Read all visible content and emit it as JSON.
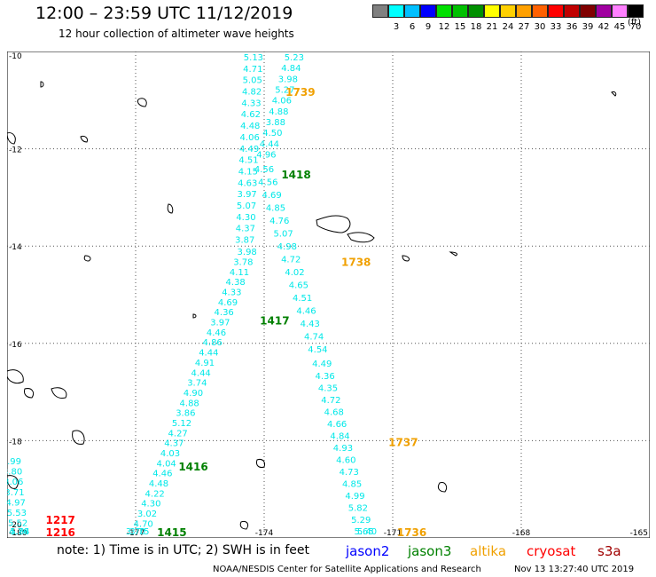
{
  "title": "12:00 – 23:59 UTC 11/12/2019",
  "subtitle": "12 hour collection of altimeter wave heights",
  "colorbar": {
    "unit": "(ft)",
    "boxes": [
      {
        "label": "",
        "color": "#808080"
      },
      {
        "label": "3",
        "color": "#00ffff"
      },
      {
        "label": "6",
        "color": "#00bfff"
      },
      {
        "label": "9",
        "color": "#0000ff"
      },
      {
        "label": "12",
        "color": "#00e000"
      },
      {
        "label": "15",
        "color": "#00c000"
      },
      {
        "label": "18",
        "color": "#009000"
      },
      {
        "label": "21",
        "color": "#ffff00"
      },
      {
        "label": "24",
        "color": "#ffd000"
      },
      {
        "label": "27",
        "color": "#ffa000"
      },
      {
        "label": "30",
        "color": "#ff6000"
      },
      {
        "label": "33",
        "color": "#ff0000"
      },
      {
        "label": "36",
        "color": "#c00000"
      },
      {
        "label": "39",
        "color": "#800000"
      },
      {
        "label": "42",
        "color": "#a000a0"
      },
      {
        "label": "45",
        "color": "#ff80ff"
      },
      {
        "label": "70",
        "color": "#000000"
      }
    ]
  },
  "axes": {
    "lon_ticks": [
      "-180",
      "-177",
      "-174",
      "-171",
      "-168",
      "-165"
    ],
    "lat_ticks": [
      "-10",
      "-12",
      "-14",
      "-16",
      "-18",
      "-20"
    ]
  },
  "track_labels": [
    {
      "text": "1739",
      "color": "#f0a000",
      "lon": -173.5,
      "lat": -10.8
    },
    {
      "text": "1418",
      "color": "#008000",
      "lon": -173.6,
      "lat": -12.5
    },
    {
      "text": "1738",
      "color": "#f0a000",
      "lon": -172.2,
      "lat": -14.3
    },
    {
      "text": "1417",
      "color": "#008000",
      "lon": -174.1,
      "lat": -15.5
    },
    {
      "text": "1737",
      "color": "#f0a000",
      "lon": -171.1,
      "lat": -18.0
    },
    {
      "text": "1416",
      "color": "#008000",
      "lon": -176.0,
      "lat": -18.5
    },
    {
      "text": "1217",
      "color": "#ff0000",
      "lon": -179.1,
      "lat": -19.6
    },
    {
      "text": "1216",
      "color": "#ff0000",
      "lon": -179.1,
      "lat": -20.0
    },
    {
      "text": "1415",
      "color": "#008000",
      "lon": -176.5,
      "lat": -20.0
    },
    {
      "text": "1736",
      "color": "#f0a000",
      "lon": -170.9,
      "lat": -20.0
    }
  ],
  "tracks": [
    {
      "name": "jason3-1418",
      "color": "#00e8e8",
      "start": [
        -174.25,
        -10.0
      ],
      "end": [
        -174.45,
        -13.75
      ],
      "values": [
        "5.13",
        "4.71",
        "5.05",
        "4.82",
        "4.33",
        "4.62",
        "4.48",
        "4.06",
        "4.49",
        "4.51",
        "4.15",
        "4.63",
        "3.97",
        "5.07",
        "4.30",
        "4.37",
        "3.87"
      ]
    },
    {
      "name": "altika-1739",
      "color": "#00e8e8",
      "start": [
        -173.3,
        -10.0
      ],
      "end": [
        -173.95,
        -12.0
      ],
      "values": [
        "5.23",
        "4.84",
        "3.98",
        "5.27",
        "4.06",
        "4.88",
        "3.88",
        "4.50",
        "4.44",
        "4.96"
      ]
    },
    {
      "name": "altika-1738",
      "color": "#00e8e8",
      "start": [
        -174.0,
        -12.3
      ],
      "end": [
        -172.75,
        -16.0
      ],
      "values": [
        "4.56",
        "4.56",
        "4.69",
        "4.85",
        "4.76",
        "5.07",
        "4.98",
        "4.72",
        "4.02",
        "4.65",
        "4.51",
        "4.46",
        "4.43",
        "4.74",
        "4.54"
      ]
    },
    {
      "name": "altika-1737",
      "color": "#00e8e8",
      "start": [
        -172.65,
        -16.3
      ],
      "end": [
        -171.6,
        -20.0
      ],
      "values": [
        "4.49",
        "4.36",
        "4.35",
        "4.72",
        "4.68",
        "4.66",
        "4.84",
        "4.93",
        "4.60",
        "4.73",
        "4.85",
        "4.99",
        "5.82",
        "5.29",
        "5.65",
        "5.40"
      ]
    },
    {
      "name": "jason3-1416",
      "color": "#00e8e8",
      "start": [
        -174.4,
        -14.0
      ],
      "end": [
        -177.0,
        -20.0
      ],
      "values": [
        "3.98",
        "3.78",
        "4.11",
        "4.38",
        "4.33",
        "4.69",
        "4.36",
        "3.97",
        "4.46",
        "4.86",
        "4.44",
        "4.91",
        "4.44",
        "3.74",
        "4.90",
        "4.88",
        "3.86",
        "5.12",
        "4.27",
        "4.37",
        "4.03",
        "4.04",
        "4.46",
        "4.48",
        "4.22",
        "4.30",
        "3.02",
        "4.70",
        "3.75",
        "3.70"
      ]
    },
    {
      "name": "sentinel-1216",
      "color": "#00e8e8",
      "start": [
        -179.9,
        -18.3
      ],
      "end": [
        -179.7,
        -20.0
      ],
      "values": [
        "3.99",
        "3.80",
        "3.06",
        "3.71",
        "4.97",
        "5.53",
        "5.52",
        "4.76",
        "5.84"
      ]
    }
  ],
  "legend": {
    "note": "note:  1) Time is in UTC;  2) SWH is in feet",
    "items": [
      {
        "text": "jason2",
        "color": "#0000ff"
      },
      {
        "text": "jason3",
        "color": "#008000"
      },
      {
        "text": "altika",
        "color": "#f0a000"
      },
      {
        "text": "cryosat",
        "color": "#ff0000"
      },
      {
        "text": "s3a",
        "color": "#a00000"
      }
    ]
  },
  "footer": {
    "credit": "NOAA/NESDIS Center for Satellite Applications and Research",
    "timestamp": "Nov 13 13:27:40 UTC 2019"
  }
}
